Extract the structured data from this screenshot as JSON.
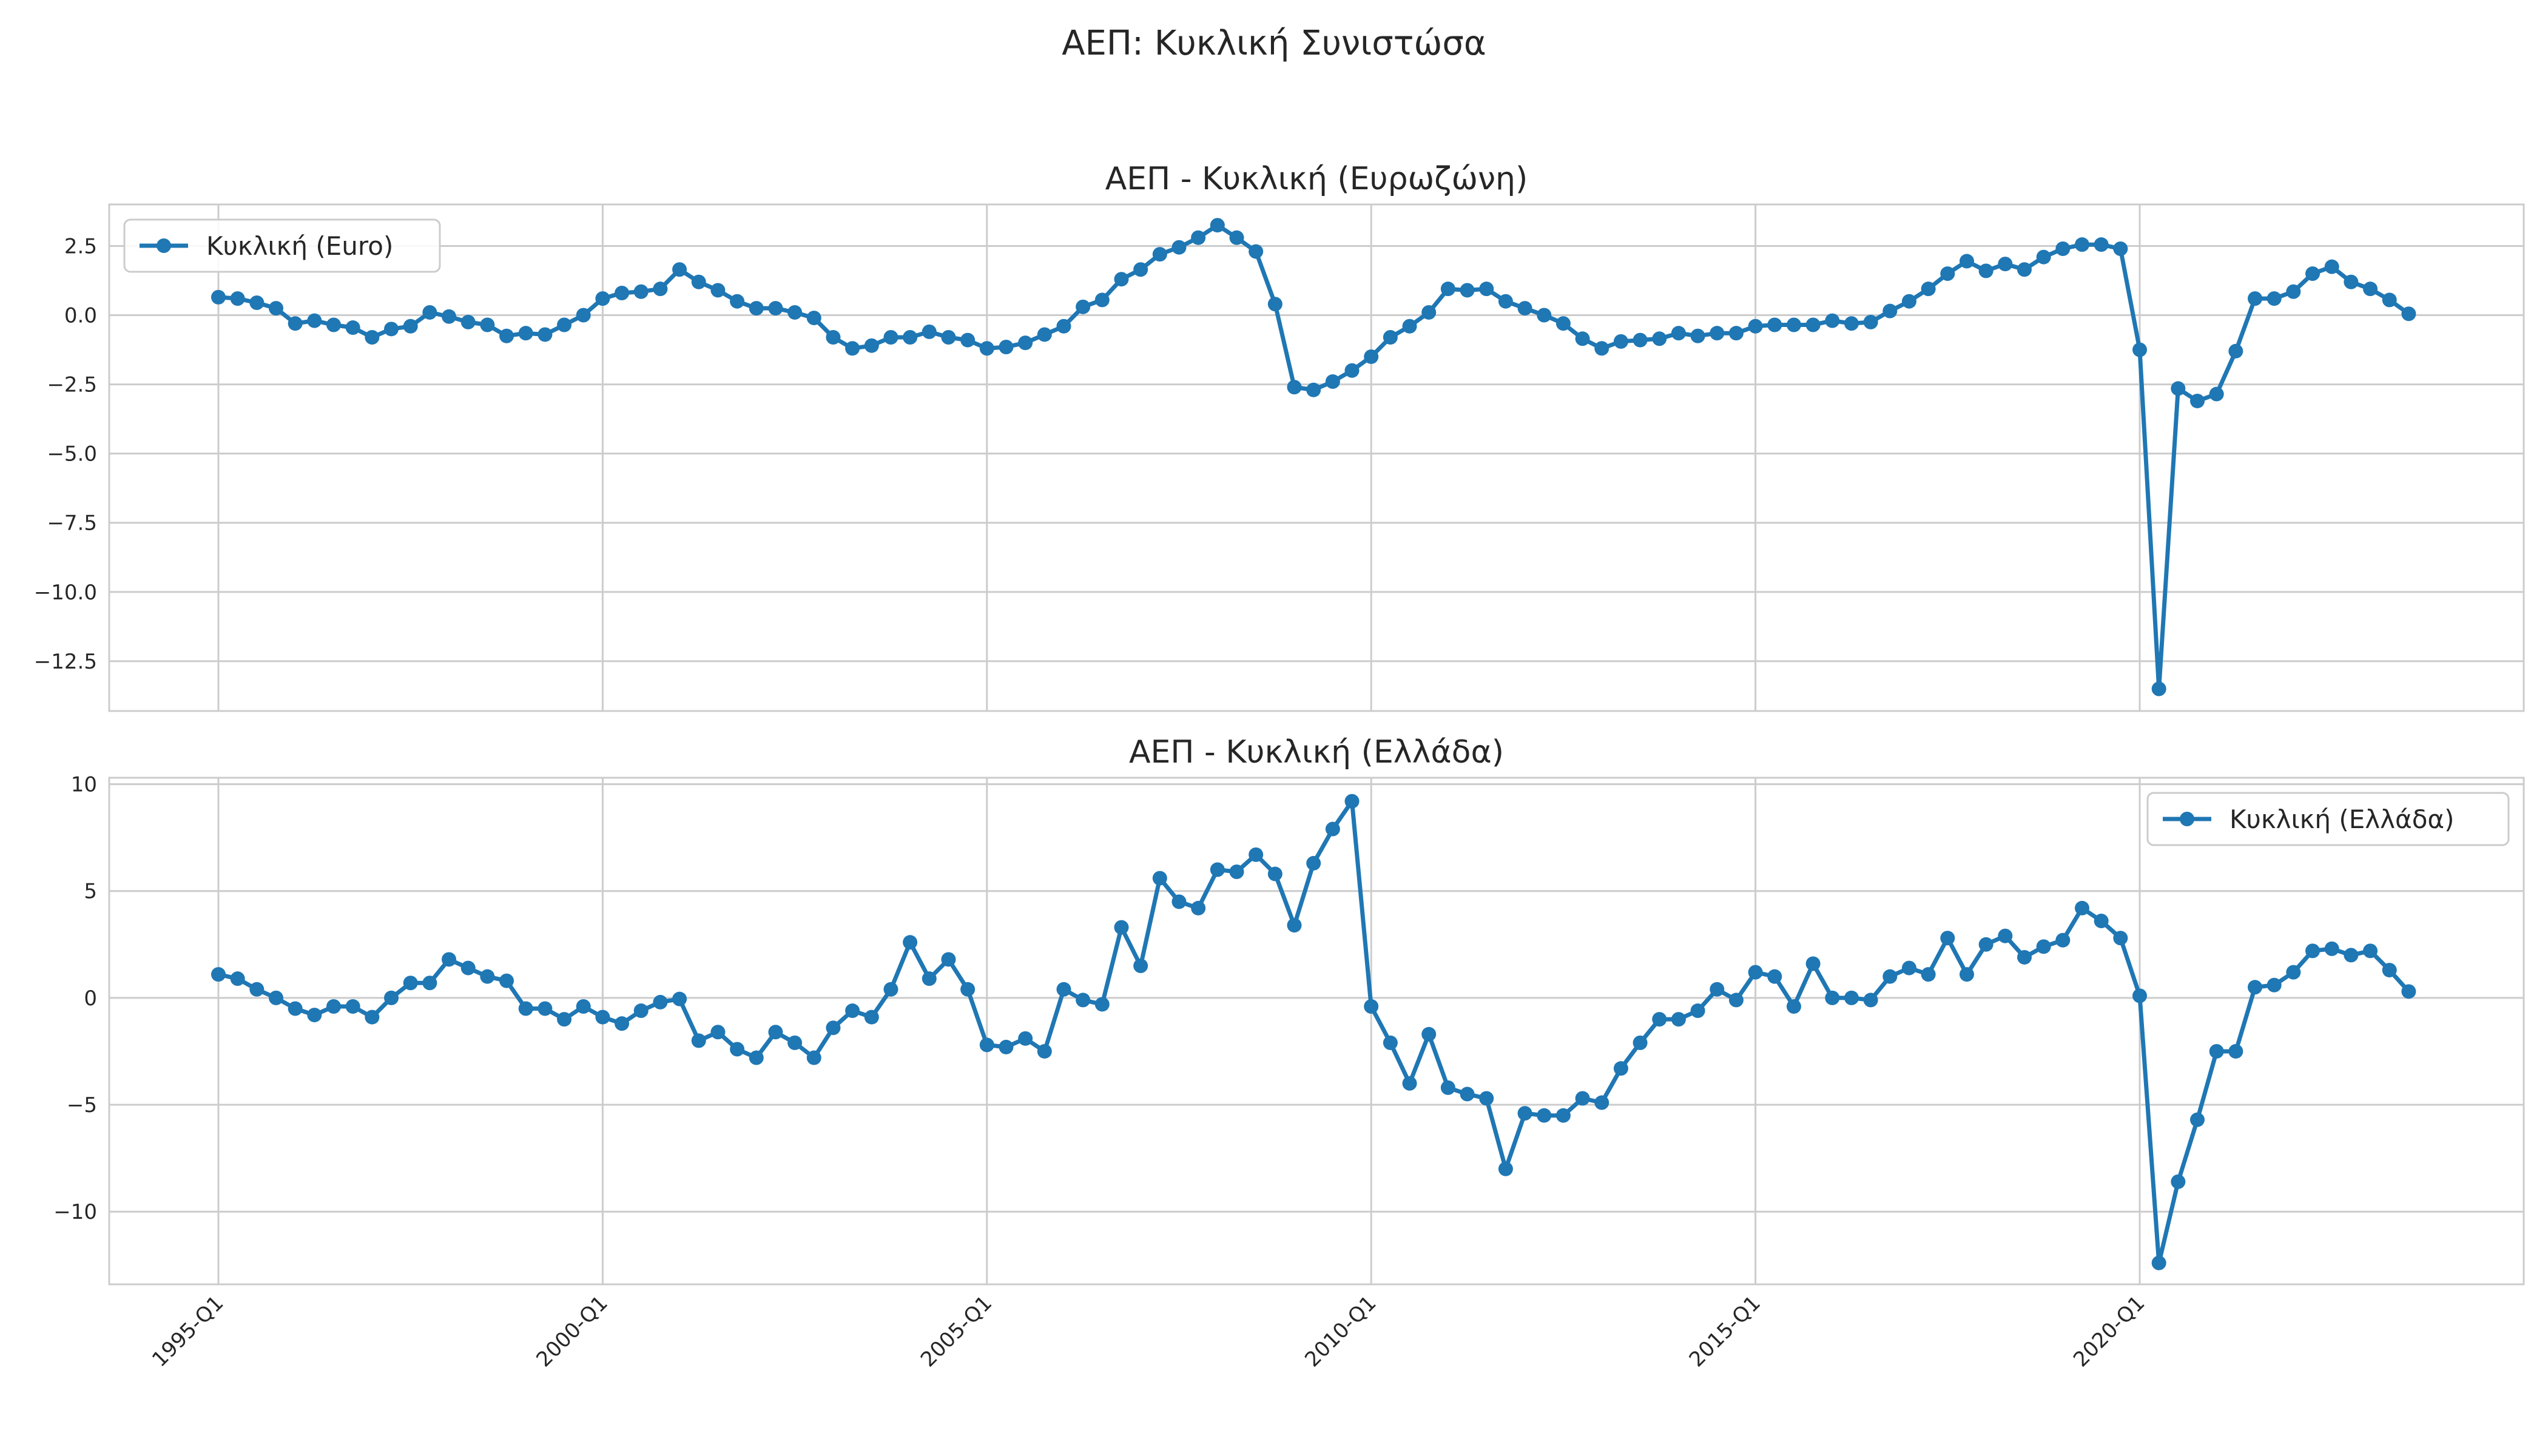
{
  "chart_data": {
    "suptitle": "ΑΕΠ: Κυκλική Συνιστώσα",
    "x_tick_labels": [
      "1995-Q1",
      "2000-Q1",
      "2005-Q1",
      "2010-Q1",
      "2015-Q1",
      "2020-Q1"
    ],
    "x_tick_indices": [
      0,
      20,
      40,
      60,
      80,
      100
    ],
    "line_color": "#1f77b4",
    "charts": [
      {
        "type": "line",
        "title": "ΑΕΠ - Κυκλική (Ευρωζώνη)",
        "legend_position": "upper-left",
        "ylim": [
          -14.3,
          4.0
        ],
        "y_ticks": [
          2.5,
          0.0,
          -2.5,
          -5.0,
          -7.5,
          -10.0,
          -12.5
        ],
        "y_tick_labels": [
          "2.5",
          "0.0",
          "−2.5",
          "−5.0",
          "−7.5",
          "−10.0",
          "−12.5"
        ],
        "series": [
          {
            "name": "Κυκλική (Euro)",
            "values": [
              0.65,
              0.6,
              0.45,
              0.25,
              -0.3,
              -0.2,
              -0.35,
              -0.45,
              -0.8,
              -0.5,
              -0.4,
              0.1,
              -0.05,
              -0.25,
              -0.35,
              -0.75,
              -0.65,
              -0.7,
              -0.35,
              0.0,
              0.6,
              0.8,
              0.85,
              0.95,
              1.65,
              1.2,
              0.9,
              0.5,
              0.25,
              0.25,
              0.1,
              -0.1,
              -0.8,
              -1.2,
              -1.1,
              -0.8,
              -0.8,
              -0.6,
              -0.8,
              -0.9,
              -1.2,
              -1.15,
              -1.0,
              -0.7,
              -0.4,
              0.3,
              0.55,
              1.3,
              1.65,
              2.2,
              2.45,
              2.8,
              3.25,
              2.8,
              2.3,
              0.4,
              -2.6,
              -2.7,
              -2.4,
              -2.0,
              -1.5,
              -0.8,
              -0.4,
              0.1,
              0.95,
              0.9,
              0.95,
              0.5,
              0.25,
              0.0,
              -0.3,
              -0.85,
              -1.2,
              -0.95,
              -0.9,
              -0.85,
              -0.65,
              -0.75,
              -0.65,
              -0.65,
              -0.4,
              -0.35,
              -0.35,
              -0.35,
              -0.2,
              -0.3,
              -0.25,
              0.15,
              0.5,
              0.95,
              1.5,
              1.95,
              1.6,
              1.85,
              1.65,
              2.1,
              2.4,
              2.55,
              2.55,
              2.4,
              -1.25,
              -13.5,
              -2.65,
              -3.1,
              -2.85,
              -1.3,
              0.6,
              0.6,
              0.85,
              1.5,
              1.75,
              1.2,
              0.95,
              0.55,
              0.05
            ]
          }
        ]
      },
      {
        "type": "line",
        "title": "ΑΕΠ - Κυκλική (Ελλάδα)",
        "legend_position": "upper-right",
        "ylim": [
          -13.4,
          10.3
        ],
        "y_ticks": [
          10,
          5,
          0,
          -5,
          -10
        ],
        "y_tick_labels": [
          "10",
          "5",
          "0",
          "−5",
          "−10"
        ],
        "series": [
          {
            "name": "Κυκλική (Ελλάδα)",
            "values": [
              1.1,
              0.9,
              0.4,
              0.0,
              -0.5,
              -0.8,
              -0.4,
              -0.4,
              -0.9,
              0.0,
              0.7,
              0.7,
              1.8,
              1.4,
              1.0,
              0.8,
              -0.5,
              -0.5,
              -1.0,
              -0.4,
              -0.9,
              -1.2,
              -0.6,
              -0.2,
              -0.05,
              -2.0,
              -1.6,
              -2.4,
              -2.8,
              -1.6,
              -2.1,
              -2.8,
              -1.4,
              -0.6,
              -0.9,
              0.4,
              2.6,
              0.9,
              1.8,
              0.4,
              -2.2,
              -2.3,
              -1.9,
              -2.5,
              0.4,
              -0.1,
              -0.3,
              3.3,
              1.5,
              5.6,
              4.5,
              4.2,
              6.0,
              5.9,
              6.7,
              5.8,
              3.4,
              6.3,
              7.9,
              9.2,
              -0.4,
              -2.1,
              -4.0,
              -1.7,
              -4.2,
              -4.5,
              -4.7,
              -8.0,
              -5.4,
              -5.5,
              -5.5,
              -4.7,
              -4.9,
              -3.3,
              -2.1,
              -1.0,
              -1.0,
              -0.6,
              0.4,
              -0.1,
              1.2,
              1.0,
              -0.4,
              1.6,
              0.0,
              0.0,
              -0.1,
              1.0,
              1.4,
              1.1,
              2.8,
              1.1,
              2.5,
              2.9,
              1.9,
              2.4,
              2.7,
              4.2,
              3.6,
              2.8,
              0.1,
              -12.4,
              -8.6,
              -5.7,
              -2.5,
              -2.5,
              0.5,
              0.6,
              1.2,
              2.2,
              2.3,
              2.0,
              2.2,
              1.3,
              0.3
            ]
          }
        ]
      }
    ]
  }
}
